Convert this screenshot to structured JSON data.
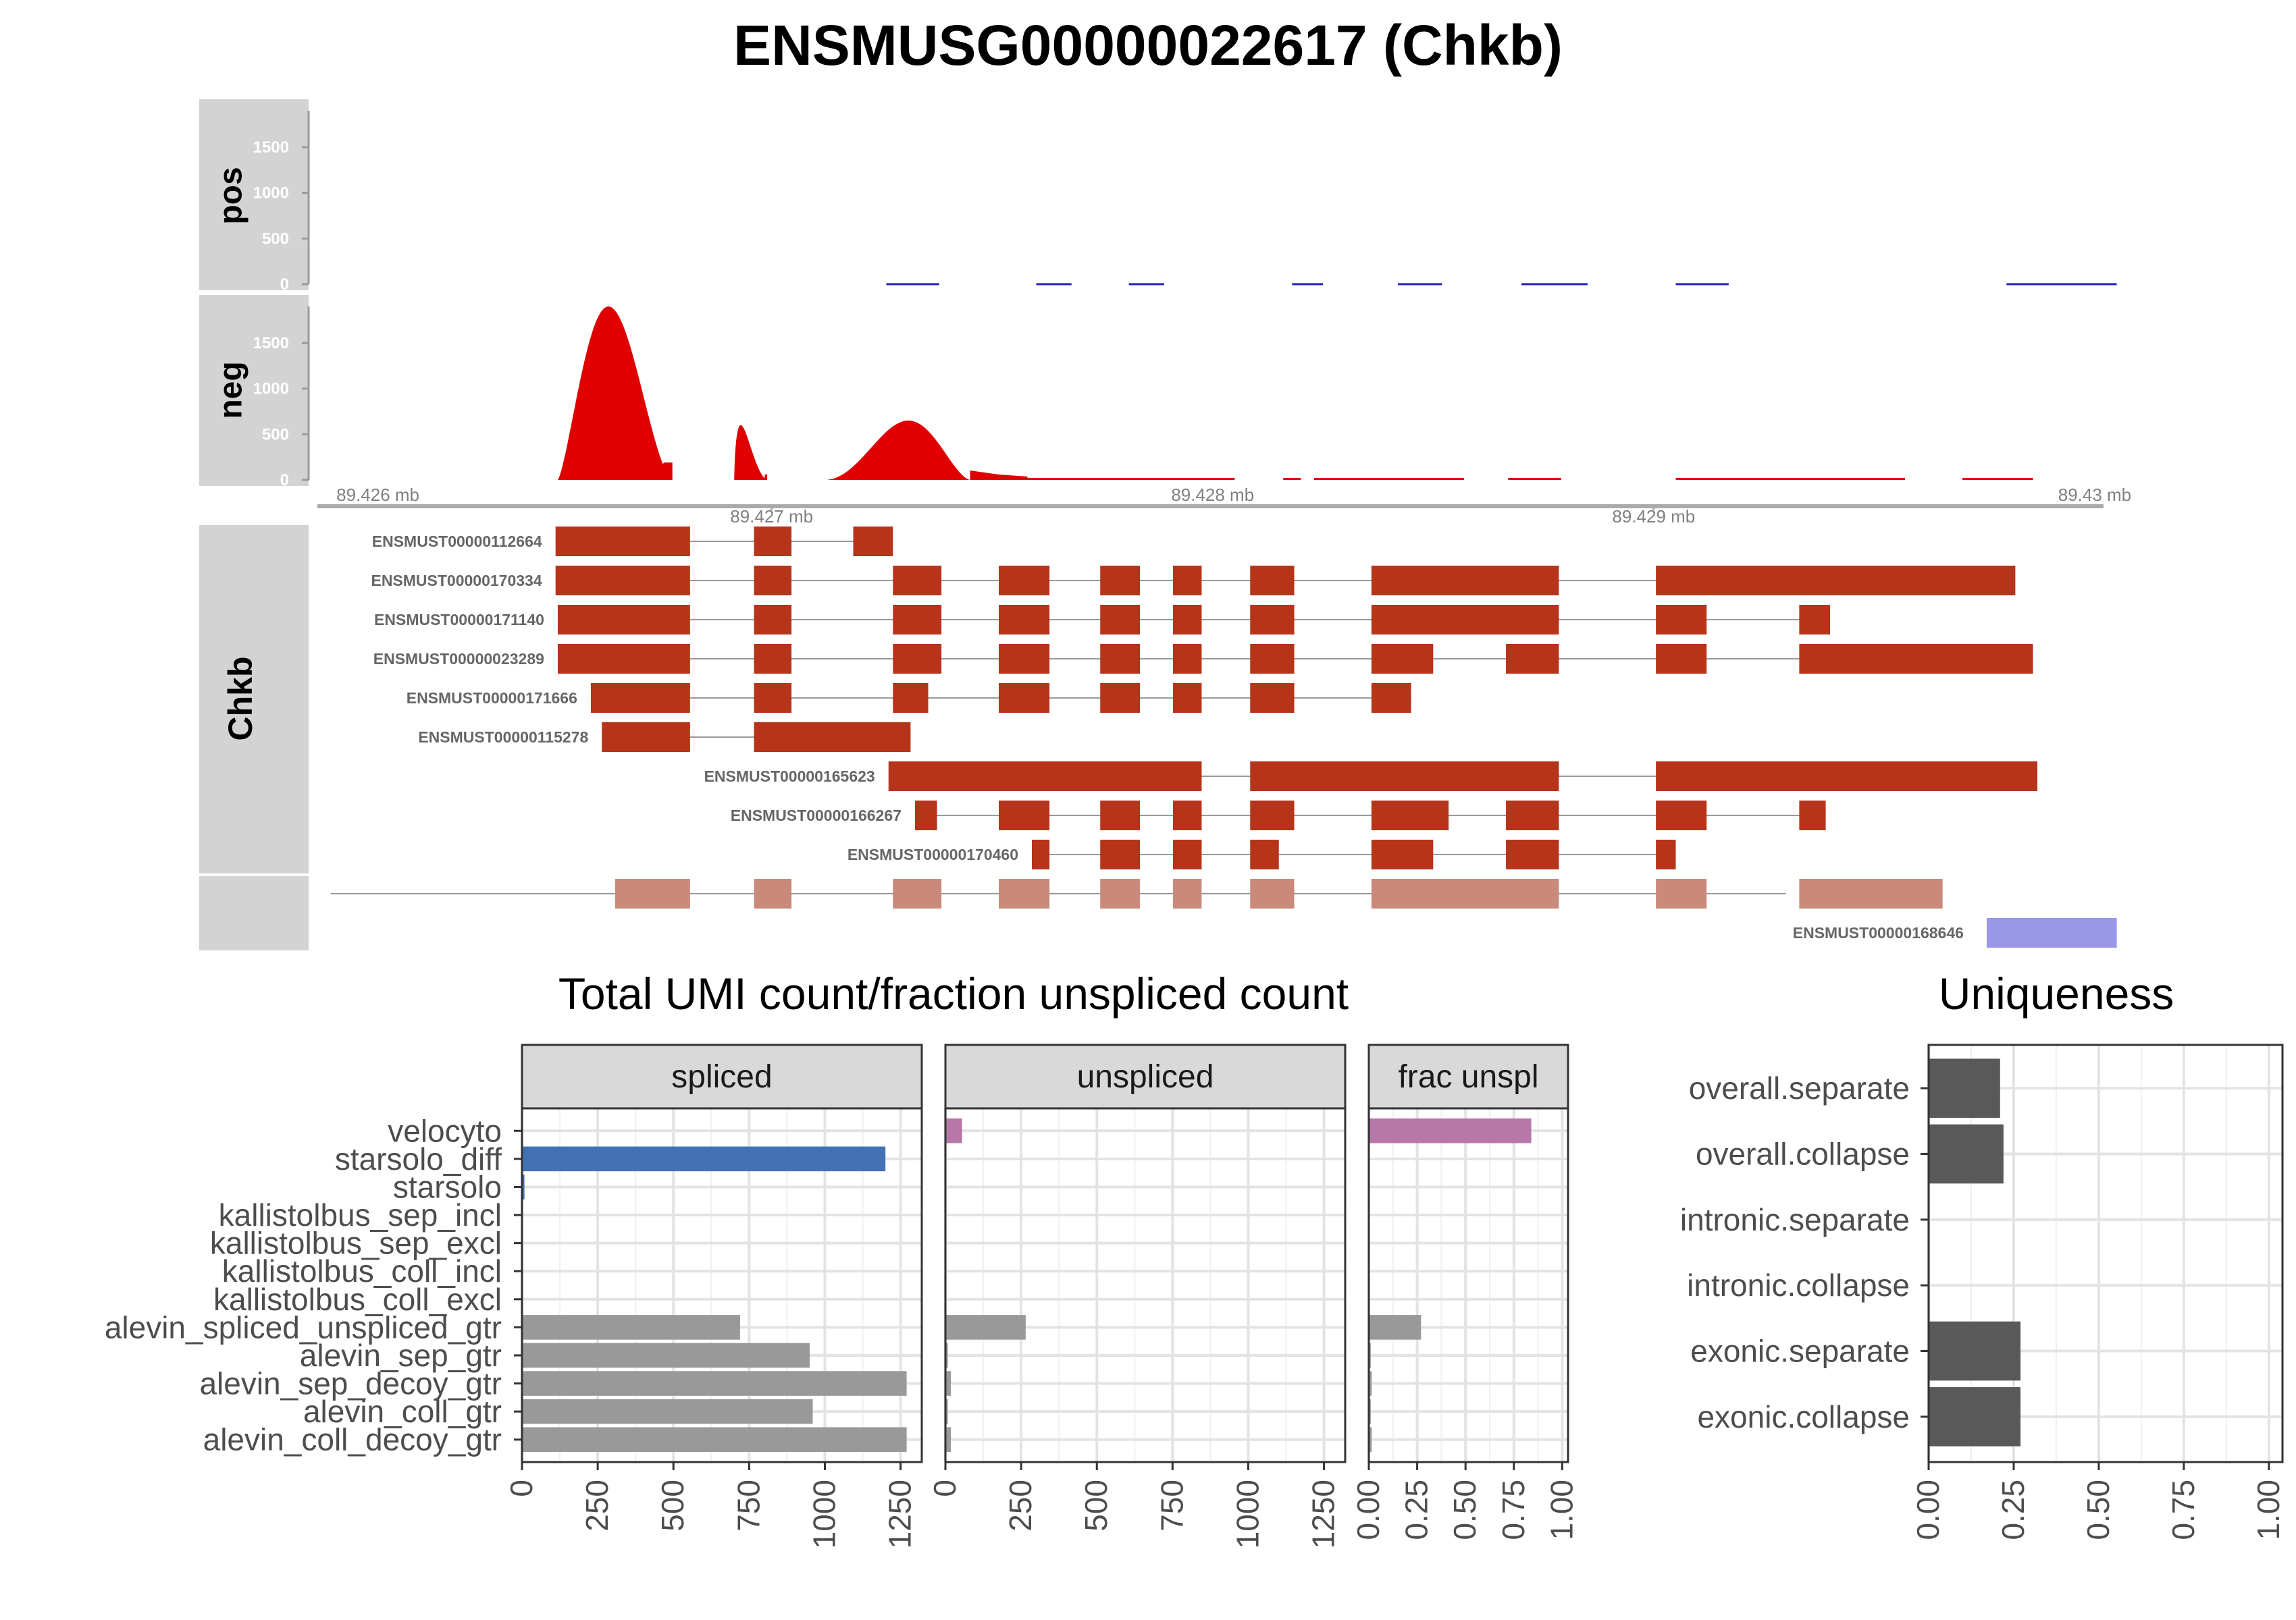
{
  "title": "ENSMUSG00000022617 (Chkb)",
  "coverage": {
    "pos_label": "pos",
    "neg_label": "neg",
    "yticks": [
      "0",
      "500",
      "1000",
      "1500"
    ],
    "ymax": 1900,
    "xrange": [
      89425.97,
      89430.02
    ],
    "scale_ticks_top": [
      "89.426 mb",
      "89.428 mb",
      "89.43 mb"
    ],
    "scale_ticks_top_pos": [
      89426.0,
      89428.0,
      89430.0
    ],
    "scale_ticks_bottom": [
      "89.427 mb",
      "89.429 mb"
    ],
    "scale_ticks_bottom_pos": [
      89427.0,
      89429.0
    ],
    "pos_color": "#1f1fbf",
    "neg_color": "#e00000",
    "pos_segments": [
      [
        89427.26,
        89427.38
      ],
      [
        89427.6,
        89427.68
      ],
      [
        89427.81,
        89427.89
      ],
      [
        89428.18,
        89428.25
      ],
      [
        89428.42,
        89428.52
      ],
      [
        89428.7,
        89428.85
      ],
      [
        89429.05,
        89429.17
      ],
      [
        89429.8,
        89430.05
      ]
    ],
    "neg_peaks": [
      {
        "kind": "peak",
        "start": 89426.515,
        "end": 89426.775,
        "mid": 89426.63,
        "max": 1900
      },
      {
        "kind": "peak",
        "start": 89426.915,
        "end": 89426.99,
        "mid": 89426.93,
        "max": 600
      },
      {
        "kind": "peak",
        "start": 89427.12,
        "end": 89427.45,
        "mid": 89427.31,
        "max": 650
      }
    ],
    "neg_low": [
      [
        89427.45,
        89427.58
      ],
      [
        89427.58,
        89428.05
      ],
      [
        89428.16,
        89428.2
      ],
      [
        89428.23,
        89428.57
      ],
      [
        89428.67,
        89428.79
      ],
      [
        89429.05,
        89429.57
      ],
      [
        89429.7,
        89429.86
      ]
    ]
  },
  "transcripts": {
    "gene_label": "Chkb",
    "exon_color": "#b5341a",
    "collapsed_color": "#c98a7b",
    "extra_color": "#9b97e8",
    "rows": [
      {
        "id": "ENSMUST00000112664",
        "exons": [
          [
            89426.51,
            89426.815
          ],
          [
            89426.96,
            89427.045
          ],
          [
            89427.185,
            89427.275
          ]
        ]
      },
      {
        "id": "ENSMUST00000170334",
        "exons": [
          [
            89426.51,
            89426.815
          ],
          [
            89426.96,
            89427.045
          ],
          [
            89427.275,
            89427.385
          ],
          [
            89427.515,
            89427.63
          ],
          [
            89427.745,
            89427.835
          ],
          [
            89427.91,
            89427.975
          ],
          [
            89428.085,
            89428.185
          ],
          [
            89428.36,
            89428.785
          ],
          [
            89429.005,
            89429.82
          ]
        ]
      },
      {
        "id": "ENSMUST00000171140",
        "exons": [
          [
            89426.515,
            89426.815
          ],
          [
            89426.96,
            89427.045
          ],
          [
            89427.275,
            89427.385
          ],
          [
            89427.515,
            89427.63
          ],
          [
            89427.745,
            89427.835
          ],
          [
            89427.91,
            89427.975
          ],
          [
            89428.085,
            89428.185
          ],
          [
            89428.36,
            89428.785
          ],
          [
            89429.005,
            89429.12
          ],
          [
            89429.33,
            89429.4
          ]
        ]
      },
      {
        "id": "ENSMUST00000023289",
        "exons": [
          [
            89426.515,
            89426.815
          ],
          [
            89426.96,
            89427.045
          ],
          [
            89427.275,
            89427.385
          ],
          [
            89427.515,
            89427.63
          ],
          [
            89427.745,
            89427.835
          ],
          [
            89427.91,
            89427.975
          ],
          [
            89428.085,
            89428.185
          ],
          [
            89428.36,
            89428.5
          ],
          [
            89428.665,
            89428.785
          ],
          [
            89429.005,
            89429.12
          ],
          [
            89429.33,
            89429.86
          ]
        ]
      },
      {
        "id": "ENSMUST00000171666",
        "exons": [
          [
            89426.59,
            89426.815
          ],
          [
            89426.96,
            89427.045
          ],
          [
            89427.275,
            89427.355
          ],
          [
            89427.515,
            89427.63
          ],
          [
            89427.745,
            89427.835
          ],
          [
            89427.91,
            89427.975
          ],
          [
            89428.085,
            89428.185
          ],
          [
            89428.36,
            89428.45
          ]
        ]
      },
      {
        "id": "ENSMUST00000115278",
        "exons": [
          [
            89426.615,
            89426.815
          ],
          [
            89426.96,
            89427.315
          ]
        ]
      },
      {
        "id": "ENSMUST00000165623",
        "exons": [
          [
            89427.265,
            89427.975
          ],
          [
            89428.085,
            89428.785
          ],
          [
            89429.005,
            89429.87
          ]
        ]
      },
      {
        "id": "ENSMUST00000166267",
        "exons": [
          [
            89427.325,
            89427.375
          ],
          [
            89427.515,
            89427.63
          ],
          [
            89427.745,
            89427.835
          ],
          [
            89427.91,
            89427.975
          ],
          [
            89428.085,
            89428.185
          ],
          [
            89428.36,
            89428.535
          ],
          [
            89428.665,
            89428.785
          ],
          [
            89429.005,
            89429.12
          ],
          [
            89429.33,
            89429.39
          ]
        ]
      },
      {
        "id": "ENSMUST00000170460",
        "exons": [
          [
            89427.59,
            89427.63
          ],
          [
            89427.745,
            89427.835
          ],
          [
            89427.91,
            89427.975
          ],
          [
            89428.085,
            89428.15
          ],
          [
            89428.36,
            89428.5
          ],
          [
            89428.665,
            89428.785
          ],
          [
            89429.005,
            89429.05
          ]
        ]
      }
    ],
    "collapsed": {
      "line": [
        89426.0,
        89429.3
      ],
      "exons": [
        [
          89426.645,
          89426.815
        ],
        [
          89426.96,
          89427.045
        ],
        [
          89427.275,
          89427.385
        ],
        [
          89427.515,
          89427.63
        ],
        [
          89427.745,
          89427.835
        ],
        [
          89427.91,
          89427.975
        ],
        [
          89428.085,
          89428.185
        ],
        [
          89428.36,
          89428.785
        ],
        [
          89429.005,
          89429.12
        ],
        [
          89429.33,
          89429.655
        ]
      ]
    },
    "extra": {
      "id": "ENSMUST00000168646",
      "exons": [
        [
          89429.755,
          89430.05
        ]
      ]
    }
  },
  "umi_title": "Total UMI count/fraction unspliced count",
  "uniq_title": "Uniqueness",
  "chart_data": [
    {
      "type": "bar",
      "orientation": "horizontal",
      "title": "Total UMI count/fraction unspliced count",
      "categories": [
        "velocyto",
        "starsolo_diff",
        "starsolo",
        "kallistolbus_sep_incl",
        "kallistolbus_sep_excl",
        "kallistolbus_coll_incl",
        "kallistolbus_coll_excl",
        "alevin_spliced_unspliced_gtr",
        "alevin_sep_gtr",
        "alevin_sep_decoy_gtr",
        "alevin_coll_gtr",
        "alevin_coll_decoy_gtr"
      ],
      "bar_colors": [
        "#b777a9",
        "#4272b3",
        "#4272b3",
        "#999999",
        "#999999",
        "#999999",
        "#999999",
        "#999999",
        "#999999",
        "#999999",
        "#999999",
        "#999999"
      ],
      "facets": [
        {
          "label": "spliced",
          "xlim": [
            0,
            1320
          ],
          "ticks": [
            0,
            250,
            500,
            750,
            1000,
            1250
          ],
          "values": [
            0,
            1200,
            8,
            0,
            0,
            0,
            0,
            720,
            950,
            1270,
            960,
            1270
          ]
        },
        {
          "label": "unspliced",
          "xlim": [
            0,
            1320
          ],
          "ticks": [
            0,
            250,
            500,
            750,
            1000,
            1250
          ],
          "values": [
            55,
            0,
            0,
            0,
            0,
            0,
            0,
            265,
            8,
            18,
            8,
            18
          ]
        },
        {
          "label": "frac unspl",
          "xlim": [
            0,
            1.03
          ],
          "ticks": [
            0.0,
            0.25,
            0.5,
            0.75,
            1.0
          ],
          "tick_labels": [
            "0.00",
            "0.25",
            "0.50",
            "0.75",
            "1.00"
          ],
          "values": [
            0.84,
            0,
            0,
            0,
            0,
            0,
            0,
            0.27,
            0.01,
            0.015,
            0.01,
            0.015
          ]
        }
      ]
    },
    {
      "type": "bar",
      "orientation": "horizontal",
      "title": "Uniqueness",
      "categories": [
        "overall.separate",
        "overall.collapse",
        "intronic.separate",
        "intronic.collapse",
        "exonic.separate",
        "exonic.collapse"
      ],
      "values": [
        0.21,
        0.22,
        0,
        0,
        0.27,
        0.27
      ],
      "xlim": [
        0,
        1.04
      ],
      "ticks": [
        0.0,
        0.25,
        0.5,
        0.75,
        1.0
      ],
      "tick_labels": [
        "0.00",
        "0.25",
        "0.50",
        "0.75",
        "1.00"
      ],
      "bar_color": "#595959"
    }
  ]
}
